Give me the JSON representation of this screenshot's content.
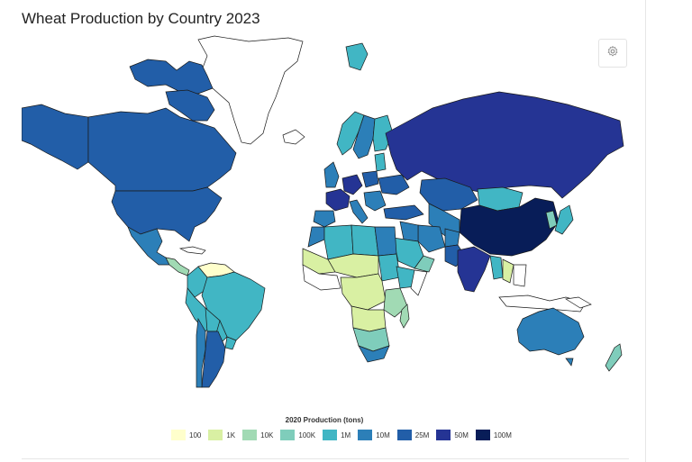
{
  "title": "Wheat Production by Country 2023",
  "legend": {
    "title": "2020 Production (tons)",
    "items": [
      {
        "label": "100",
        "color": "#ffffcc"
      },
      {
        "label": "1K",
        "color": "#d9f0a3"
      },
      {
        "label": "10K",
        "color": "#a1dab4"
      },
      {
        "label": "100K",
        "color": "#7fcdbb"
      },
      {
        "label": "1M",
        "color": "#41b6c4"
      },
      {
        "label": "10M",
        "color": "#2c7fb8"
      },
      {
        "label": "25M",
        "color": "#225ea8"
      },
      {
        "label": "50M",
        "color": "#253494"
      },
      {
        "label": "100M",
        "color": "#081d58"
      }
    ]
  },
  "settings": {
    "icon": "gear-icon"
  }
}
